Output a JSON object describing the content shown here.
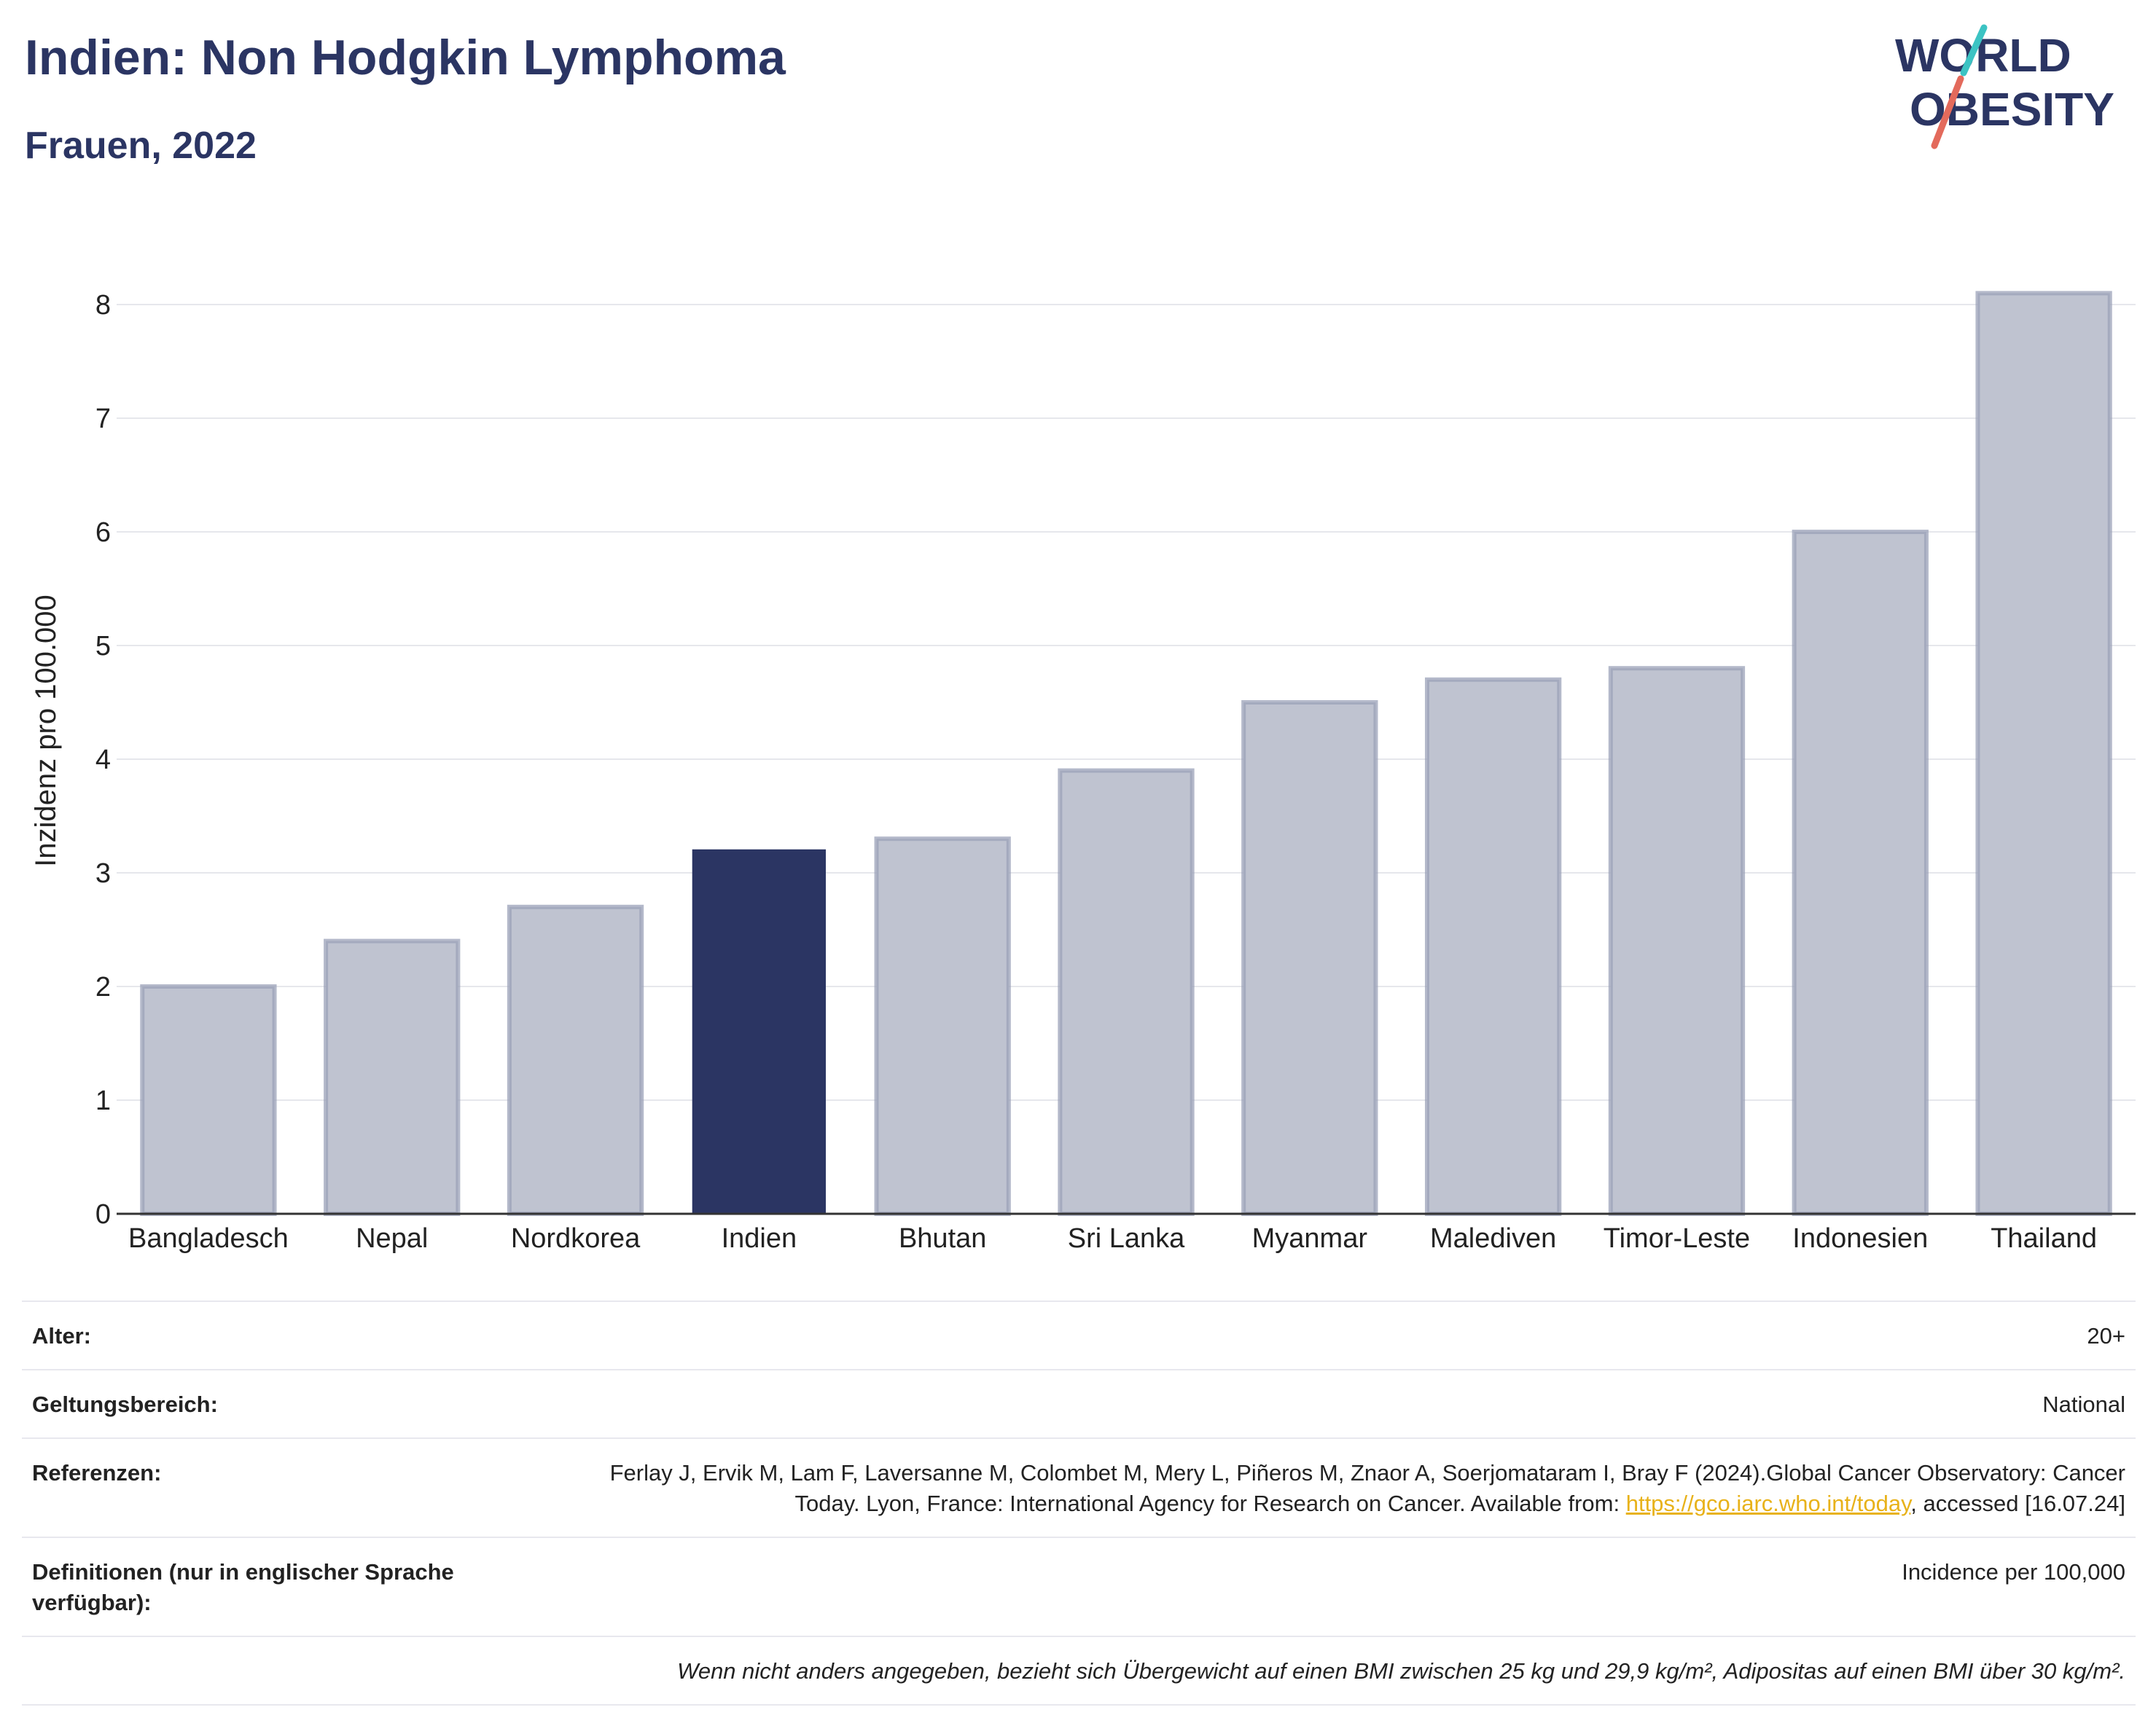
{
  "header": {
    "title": "Indien: Non Hodgkin Lymphoma",
    "subtitle": "Frauen, 2022"
  },
  "logo": {
    "line1": "WORLD",
    "line2": "OBESITY",
    "accent_color": "#3cc3c3",
    "slash_color": "#e36a5c"
  },
  "colors": {
    "highlight": "#2b3563",
    "bar": "#bfc3d0",
    "bar_border": "#9ba1b8",
    "text": "#2b3563"
  },
  "chart_data": {
    "type": "bar",
    "categories": [
      "Bangladesch",
      "Nepal",
      "Nordkorea",
      "Indien",
      "Bhutan",
      "Sri Lanka",
      "Myanmar",
      "Malediven",
      "Timor-Leste",
      "Indonesien",
      "Thailand"
    ],
    "values": [
      2.0,
      2.4,
      2.7,
      3.2,
      3.3,
      3.9,
      4.5,
      4.7,
      4.8,
      6.0,
      8.1
    ],
    "highlight": "Indien",
    "ylabel": "Inzidenz pro 100.000",
    "xlabel": "",
    "ylim": [
      0,
      8.5
    ],
    "yticks": [
      0,
      1,
      2,
      3,
      4,
      5,
      6,
      7,
      8
    ],
    "grid": true
  },
  "meta": {
    "age_label": "Alter:",
    "age_value": "20+",
    "scope_label": "Geltungsbereich:",
    "scope_value": "National",
    "refs_label": "Referenzen:",
    "refs_text_1": "Ferlay J, Ervik M, Lam F, Laversanne M, Colombet M, Mery L, Piñeros M, Znaor A, Soerjomataram I, Bray F (2024).Global Cancer Observatory: Cancer Today. Lyon, France: International Agency for Research on Cancer. Available from: ",
    "refs_link": "https://gco.iarc.who.int/today",
    "refs_text_2": ", accessed [16.07.24]",
    "defs_label": "Definitionen (nur in englischer Sprache verfügbar):",
    "defs_value": "Incidence per 100,000",
    "footnote": "Wenn nicht anders angegeben, bezieht sich Übergewicht auf einen BMI zwischen 25 kg und 29,9 kg/m², Adipositas auf einen BMI über 30 kg/m²."
  }
}
